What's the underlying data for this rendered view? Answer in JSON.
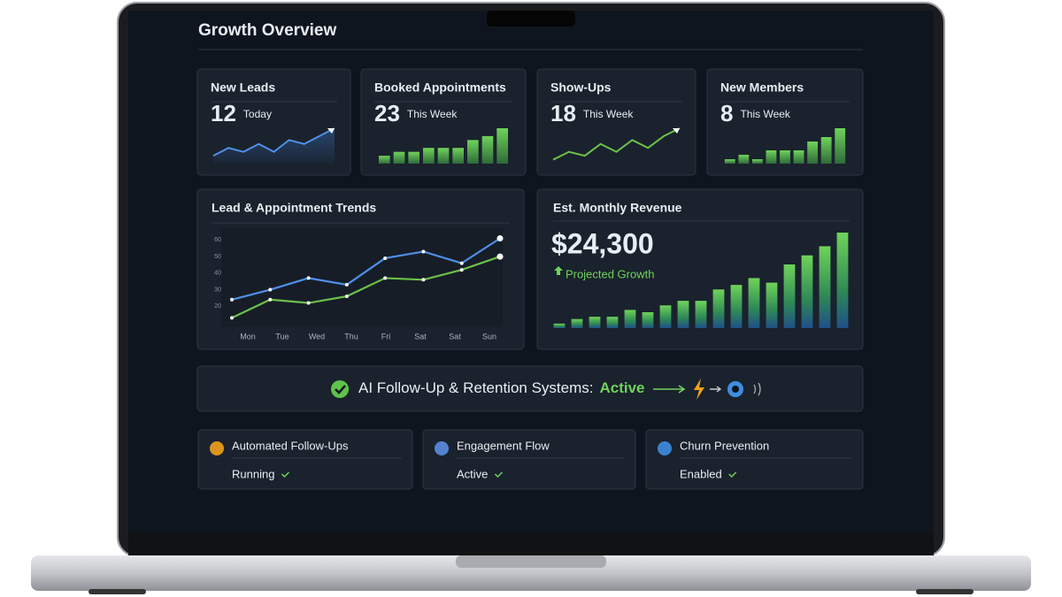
{
  "header": {
    "title": "Growth Overview"
  },
  "kpis": [
    {
      "label": "New Leads",
      "value": "12",
      "period": "Today",
      "chart": {
        "type": "line",
        "values": [
          2,
          4,
          3,
          5,
          3,
          6,
          5,
          7,
          9
        ]
      }
    },
    {
      "label": "Booked Appointments",
      "value": "23",
      "period": "This Week",
      "chart": {
        "type": "bar",
        "values": [
          2,
          3,
          3,
          4,
          4,
          4,
          6,
          7,
          9
        ]
      }
    },
    {
      "label": "Show-Ups",
      "value": "18",
      "period": "This Week",
      "chart": {
        "type": "line",
        "values": [
          1,
          3,
          2,
          5,
          3,
          6,
          4,
          7,
          9
        ]
      }
    },
    {
      "label": "New Members",
      "value": "8",
      "period": "This Week",
      "chart": {
        "type": "bar",
        "values": [
          1,
          2,
          1,
          3,
          3,
          3,
          5,
          6,
          8
        ]
      }
    }
  ],
  "trends": {
    "title": "Lead & Appointment Trends",
    "chart_data": {
      "type": "line",
      "categories": [
        "Mon",
        "Tue",
        "Wed",
        "Thu",
        "Fri",
        "Sat",
        "Sat",
        "Sun"
      ],
      "ylim": [
        10,
        65
      ],
      "yticks": [
        20,
        30,
        40,
        50,
        60
      ],
      "series": [
        {
          "color": "#4f8fe8",
          "values": [
            24,
            30,
            37,
            33,
            49,
            53,
            46,
            61
          ]
        },
        {
          "color": "#6cc04a",
          "values": [
            13,
            24,
            22,
            26,
            37,
            36,
            42,
            50
          ]
        }
      ]
    }
  },
  "revenue": {
    "title": "Est. Monthly Revenue",
    "value": "$24,300",
    "note": "Projected Growth",
    "chart": {
      "type": "bar",
      "values": [
        2,
        4,
        5,
        5,
        8,
        7,
        10,
        12,
        12,
        17,
        19,
        22,
        20,
        28,
        32,
        36,
        42
      ]
    }
  },
  "banner": {
    "label": "AI Follow-Up & Retention Systems:",
    "status": "Active"
  },
  "systems": [
    {
      "title": "Automated Follow-Ups",
      "status": "Running"
    },
    {
      "title": "Engagement Flow",
      "status": "Active"
    },
    {
      "title": "Churn Prevention",
      "status": "Enabled"
    }
  ]
}
